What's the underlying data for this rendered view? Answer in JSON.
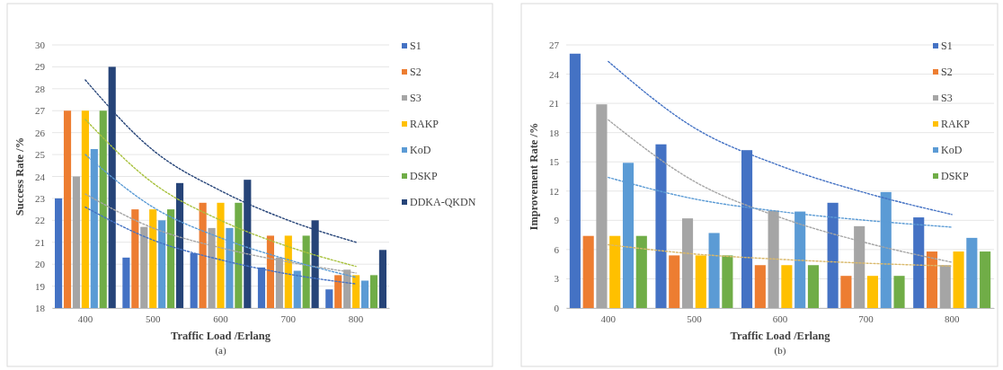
{
  "chart_data": [
    {
      "type": "bar",
      "xlabel": "Traffic Load /Erlang",
      "ylabel": "Success Rate /%",
      "annotations": [
        "(a)"
      ],
      "categories": [
        "400",
        "500",
        "600",
        "700",
        "800"
      ],
      "ylim": [
        18,
        30
      ],
      "yticks": [
        18,
        19,
        20,
        21,
        22,
        23,
        24,
        25,
        26,
        27,
        28,
        29,
        30
      ],
      "grid": "y",
      "legend": "right",
      "series": [
        {
          "name": "S1",
          "color": "#4472c4",
          "values": [
            23,
            20.3,
            20.5,
            19.85,
            18.85
          ]
        },
        {
          "name": "S2",
          "color": "#ed7d31",
          "values": [
            27,
            22.5,
            22.8,
            21.3,
            19.5
          ]
        },
        {
          "name": "S3",
          "color": "#a5a5a5",
          "values": [
            24,
            21.7,
            21.65,
            20.3,
            19.75
          ]
        },
        {
          "name": "RAKP",
          "color": "#ffc000",
          "values": [
            27,
            22.5,
            22.8,
            21.3,
            19.5
          ]
        },
        {
          "name": "KoD",
          "color": "#5b9bd5",
          "values": [
            25.25,
            22,
            21.65,
            19.7,
            19.25
          ]
        },
        {
          "name": "DSKP",
          "color": "#70ad47",
          "values": [
            27,
            22.5,
            22.8,
            21.3,
            19.5
          ]
        },
        {
          "name": "DDKA-QKDN",
          "color": "#264478",
          "values": [
            29,
            23.7,
            23.85,
            22,
            20.65
          ]
        },
        {
          "type": "line",
          "line_style": "dotted",
          "color": "#4472c4",
          "values": [
            22.6,
            21.1,
            20.2,
            19.55,
            19.1
          ]
        },
        {
          "type": "line",
          "line_style": "dotted",
          "color": "#a5a5a5",
          "values": [
            23.2,
            21.65,
            20.75,
            20.1,
            19.6
          ]
        },
        {
          "type": "line",
          "line_style": "dotted",
          "color": "#5b9bd5",
          "values": [
            25,
            22.6,
            21.2,
            20.2,
            19.4
          ]
        },
        {
          "type": "line",
          "line_style": "dotted",
          "color": "#a9c23f",
          "values": [
            26.6,
            23.7,
            22,
            20.8,
            19.9
          ]
        },
        {
          "type": "line",
          "line_style": "dotted",
          "color": "#264478",
          "values": [
            28.4,
            25.2,
            23.35,
            22,
            21
          ]
        }
      ]
    },
    {
      "type": "bar",
      "xlabel": "Traffic Load /Erlang",
      "ylabel": "Improvement Rate /%",
      "annotations": [
        "(b)"
      ],
      "categories": [
        "400",
        "500",
        "600",
        "700",
        "800"
      ],
      "ylim": [
        0,
        27
      ],
      "yticks": [
        0,
        3,
        6,
        9,
        12,
        15,
        18,
        21,
        24,
        27
      ],
      "grid": "y",
      "legend": "top right",
      "series": [
        {
          "name": "S1",
          "color": "#4472c4",
          "values": [
            26.1,
            16.8,
            16.2,
            10.8,
            9.3
          ]
        },
        {
          "name": "S2",
          "color": "#ed7d31",
          "values": [
            7.4,
            5.4,
            4.4,
            3.3,
            5.8
          ]
        },
        {
          "name": "S3",
          "color": "#a5a5a5",
          "values": [
            20.9,
            9.2,
            10,
            8.4,
            4.4
          ]
        },
        {
          "name": "RAKP",
          "color": "#ffc000",
          "values": [
            7.4,
            5.4,
            4.4,
            3.3,
            5.8
          ]
        },
        {
          "name": "KoD",
          "color": "#5b9bd5",
          "values": [
            14.9,
            7.7,
            9.9,
            11.9,
            7.2
          ]
        },
        {
          "name": "DSKP",
          "color": "#70ad47",
          "values": [
            7.4,
            5.4,
            4.4,
            3.3,
            5.8
          ]
        },
        {
          "type": "line",
          "line_style": "dotted",
          "color": "#4472c4",
          "values": [
            25.3,
            18.5,
            14.6,
            11.8,
            9.6
          ]
        },
        {
          "type": "line",
          "line_style": "dotted",
          "color": "#a5a5a5",
          "values": [
            19.3,
            13,
            9.3,
            6.7,
            4.7
          ]
        },
        {
          "type": "line",
          "line_style": "dotted",
          "color": "#5b9bd5",
          "values": [
            13.4,
            11.2,
            9.9,
            9,
            8.3
          ]
        },
        {
          "type": "line",
          "line_style": "dotted",
          "color": "#d9b86a",
          "values": [
            6.5,
            5.55,
            5,
            4.6,
            4.3
          ]
        }
      ]
    }
  ]
}
